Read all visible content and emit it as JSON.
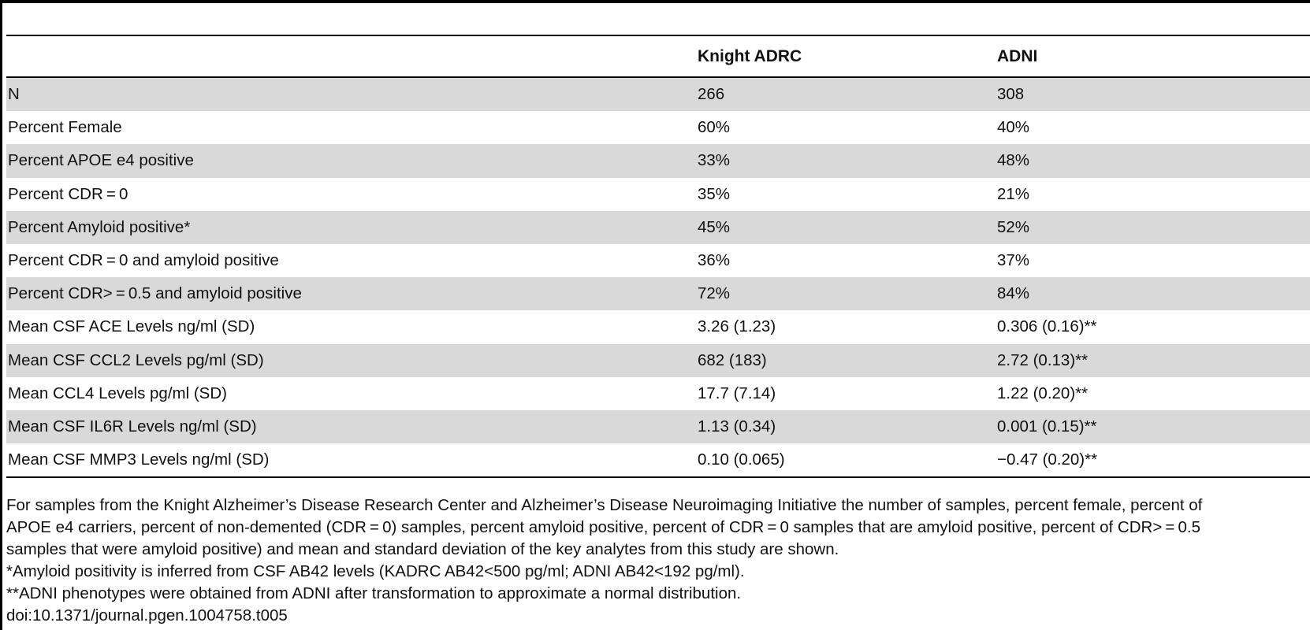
{
  "table": {
    "headers": [
      "",
      "Knight ADRC",
      "ADNI"
    ],
    "rows": [
      [
        "N",
        "266",
        "308"
      ],
      [
        "Percent Female",
        "60%",
        "40%"
      ],
      [
        "Percent APOE e4 positive",
        "33%",
        "48%"
      ],
      [
        "Percent CDR = 0",
        "35%",
        "21%"
      ],
      [
        "Percent Amyloid positive*",
        "45%",
        "52%"
      ],
      [
        "Percent CDR = 0 and amyloid positive",
        "36%",
        "37%"
      ],
      [
        "Percent CDR> = 0.5 and amyloid positive",
        "72%",
        "84%"
      ],
      [
        "Mean CSF ACE Levels ng/ml (SD)",
        "3.26 (1.23)",
        "0.306 (0.16)**"
      ],
      [
        "Mean CSF CCL2 Levels pg/ml (SD)",
        "682 (183)",
        "2.72 (0.13)**"
      ],
      [
        "Mean CCL4 Levels pg/ml (SD)",
        "17.7 (7.14)",
        "1.22 (0.20)**"
      ],
      [
        "Mean CSF IL6R Levels ng/ml (SD)",
        "1.13 (0.34)",
        "0.001 (0.15)**"
      ],
      [
        "Mean CSF MMP3 Levels ng/ml (SD)",
        "0.10 (0.065)",
        "−0.47 (0.20)**"
      ]
    ]
  },
  "footnotes": {
    "caption_line1": "For samples from the Knight Alzheimer’s Disease Research Center and Alzheimer’s Disease Neuroimaging Initiative the number of samples, percent female, percent of",
    "caption_line2": "APOE e4 carriers, percent of non-demented (CDR = 0) samples, percent amyloid positive, percent of CDR = 0 samples that are amyloid positive, percent of CDR> = 0.5",
    "caption_line3": "samples that were amyloid positive) and mean and standard deviation of the key analytes from this study are shown.",
    "note1": "*Amyloid positivity is inferred from CSF AB42 levels (KADRC AB42<500 pg/ml; ADNI AB42<192 pg/ml).",
    "note2": "**ADNI phenotypes were obtained from ADNI after transformation to approximate a normal distribution.",
    "doi": "doi:10.1371/journal.pgen.1004758.t005"
  }
}
